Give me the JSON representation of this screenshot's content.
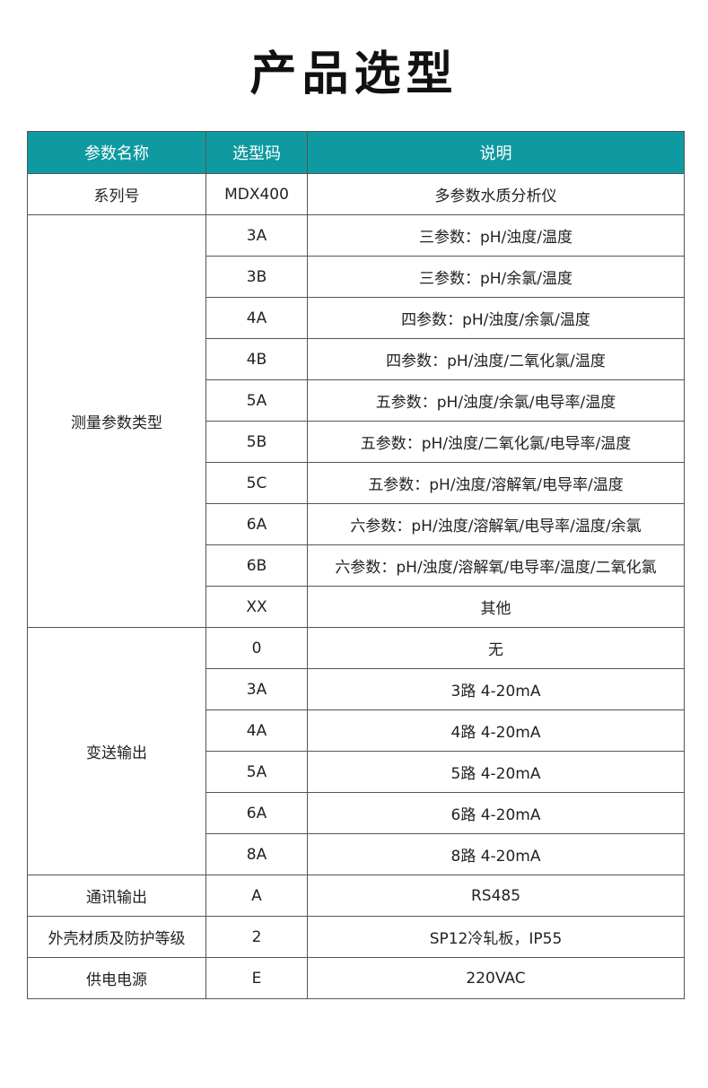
{
  "title": "产品选型",
  "headers": [
    "参数名称",
    "选型码",
    "说明"
  ],
  "groups": [
    {
      "name": "系列号",
      "rows": [
        {
          "code": "MDX400",
          "desc": "多参数水质分析仪"
        }
      ]
    },
    {
      "name": "测量参数类型",
      "rows": [
        {
          "code": "3A",
          "desc": "三参数：pH/浊度/温度"
        },
        {
          "code": "3B",
          "desc": "三参数：pH/余氯/温度"
        },
        {
          "code": "4A",
          "desc": "四参数：pH/浊度/余氯/温度"
        },
        {
          "code": "4B",
          "desc": "四参数：pH/浊度/二氧化氯/温度"
        },
        {
          "code": "5A",
          "desc": "五参数：pH/浊度/余氯/电导率/温度"
        },
        {
          "code": "5B",
          "desc": "五参数：pH/浊度/二氧化氯/电导率/温度"
        },
        {
          "code": "5C",
          "desc": "五参数：pH/浊度/溶解氧/电导率/温度"
        },
        {
          "code": "6A",
          "desc": "六参数：pH/浊度/溶解氧/电导率/温度/余氯"
        },
        {
          "code": "6B",
          "desc": "六参数：pH/浊度/溶解氧/电导率/温度/二氧化氯"
        },
        {
          "code": "XX",
          "desc": "其他"
        }
      ]
    },
    {
      "name": "变送输出",
      "rows": [
        {
          "code": "0",
          "desc": "无"
        },
        {
          "code": "3A",
          "desc": "3路 4-20mA"
        },
        {
          "code": "4A",
          "desc": "4路 4-20mA"
        },
        {
          "code": "5A",
          "desc": "5路 4-20mA"
        },
        {
          "code": "6A",
          "desc": "6路 4-20mA"
        },
        {
          "code": "8A",
          "desc": "8路 4-20mA"
        }
      ]
    },
    {
      "name": "通讯输出",
      "rows": [
        {
          "code": "A",
          "desc": "RS485"
        }
      ]
    },
    {
      "name": "外壳材质及防护等级",
      "rows": [
        {
          "code": "2",
          "desc": "SP12冷轧板，IP55"
        }
      ]
    },
    {
      "name": "供电电源",
      "rows": [
        {
          "code": "E",
          "desc": "220VAC"
        }
      ]
    }
  ],
  "colors": {
    "header_bg": "#0e9aa0"
  }
}
